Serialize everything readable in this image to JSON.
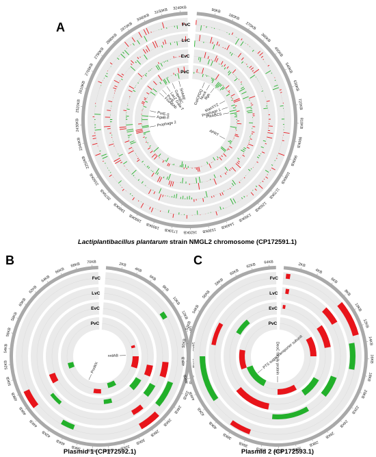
{
  "panels": {
    "a": {
      "letter": "A",
      "caption_species": "Lactiplantibacillus plantarum",
      "caption_rest": " strain NMGL2 chromosome (CP172591.1)",
      "tracks": [
        "FvC",
        "LvC",
        "EvC",
        "PvC"
      ],
      "ticks": [
        "90KB",
        "180KB",
        "270KB",
        "360KB",
        "450KB",
        "540KB",
        "630KB",
        "720KB",
        "810KB",
        "900KB",
        "990KB",
        "1080KB",
        "1170KB",
        "1260KB",
        "1350KB",
        "1440KB",
        "1530KB",
        "1620KB",
        "1710KB",
        "1800KB",
        "1890KB",
        "1980KB",
        "2070KB",
        "2160KB",
        "2250KB",
        "2340KB",
        "2430KB",
        "2520KB",
        "2610KB",
        "2700KB",
        "2790KB",
        "2880KB",
        "2970KB",
        "3060KB",
        "3150KB",
        "3240KB"
      ],
      "genes": [
        {
          "label": "SrtABE",
          "angle": 345
        },
        {
          "label": "GapABC",
          "angle": 335
        },
        {
          "label": "LacZ Gala-T",
          "angle": 326
        },
        {
          "label": "PurB",
          "angle": 318
        },
        {
          "label": "FruABAb",
          "angle": 312
        },
        {
          "label": "GalCPDQ",
          "angle": 22
        },
        {
          "label": "NucA",
          "angle": 30
        },
        {
          "label": "Bgh",
          "angle": 38
        },
        {
          "label": "ManXYZ",
          "angle": 62
        },
        {
          "label": "Prophage 1",
          "angle": 72
        },
        {
          "label": "PstABCS",
          "angle": 80
        },
        {
          "label": "PurE-S",
          "angle": 283
        },
        {
          "label": "AgaB-F",
          "angle": 275
        },
        {
          "label": "Prophage 2",
          "angle": 260
        },
        {
          "label": "APRT",
          "angle": 118
        }
      ]
    },
    "b": {
      "letter": "B",
      "caption": "Plasmid 1 (CP172592.1)",
      "tracks": [
        "FvC",
        "LvC",
        "EvC",
        "PvC"
      ],
      "ticks": [
        "2KB",
        "4KB",
        "6KB",
        "8KB",
        "10KB",
        "12KB",
        "14KB",
        "16KB",
        "18KB",
        "20KB",
        "22KB",
        "24KB",
        "26KB",
        "28KB",
        "30KB",
        "32KB",
        "34KB",
        "36KB",
        "38KB",
        "40KB",
        "42KB",
        "44KB",
        "46KB",
        "48KB",
        "50KB",
        "52KB",
        "54KB",
        "56KB",
        "58KB",
        "60KB",
        "62KB",
        "64KB",
        "66KB",
        "68KB",
        "70KB"
      ],
      "genes": [
        {
          "label": "nrdAB",
          "angle": 88
        },
        {
          "label": "ProWX",
          "angle": 205
        }
      ]
    },
    "c": {
      "letter": "C",
      "caption": "Plasmid 2 (CP172593.1)",
      "tracks": [
        "FvC",
        "LvC",
        "EvC",
        "PvC"
      ],
      "ticks": [
        "2KB",
        "4KB",
        "6KB",
        "8KB",
        "10KB",
        "12KB",
        "14KB",
        "16KB",
        "18KB",
        "20KB",
        "22KB",
        "24KB",
        "26KB",
        "28KB",
        "30KB",
        "32KB",
        "34KB",
        "36KB",
        "38KB",
        "40KB",
        "42KB",
        "44KB",
        "46KB",
        "48KB",
        "50KB",
        "52KB",
        "54KB",
        "56KB",
        "58KB",
        "60KB",
        "62KB",
        "64KB"
      ],
      "genes": [
        {
          "label": "PTS sugar transporter subunit",
          "angle": 230
        },
        {
          "label": "DeoC family protein",
          "angle": 180
        }
      ]
    }
  },
  "colors": {
    "up": "#e8141a",
    "down": "#22b02a",
    "ring_bg": "#eaeaea",
    "backbone": "#a9a9a9"
  }
}
